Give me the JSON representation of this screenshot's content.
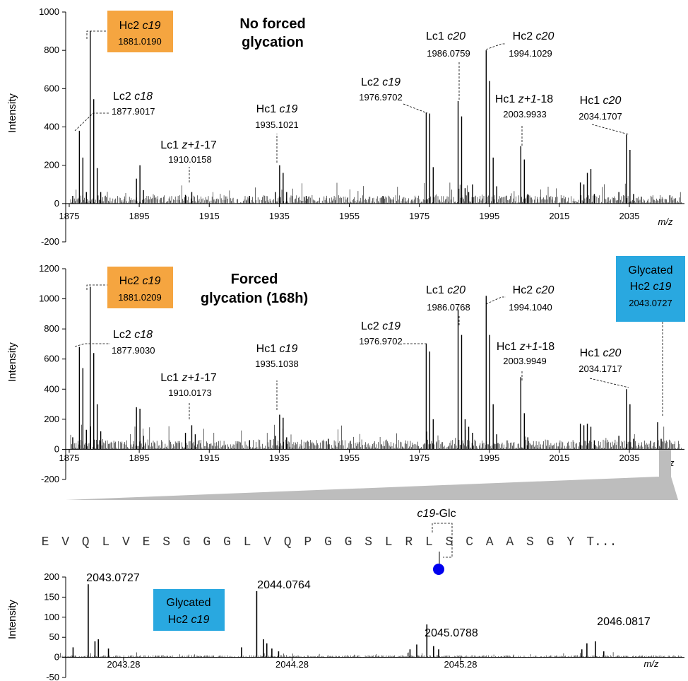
{
  "chart_data": [
    {
      "type": "bar",
      "title": "No forced glycation",
      "title_lines": [
        "No forced",
        "glycation"
      ],
      "ylabel": "Intensity",
      "xlabel": "m/z",
      "xlim": [
        1875,
        2045
      ],
      "ylim": [
        -200,
        1000
      ],
      "yticks": [
        -200,
        0,
        200,
        400,
        600,
        800,
        1000
      ],
      "xticks": [
        1875,
        1895,
        1915,
        1935,
        1955,
        1975,
        1995,
        2015,
        2035
      ],
      "peaks": [
        {
          "mz": 1876.0,
          "i": 40
        },
        {
          "mz": 1877.9,
          "i": 380
        },
        {
          "mz": 1878.9,
          "i": 240
        },
        {
          "mz": 1879.9,
          "i": 60
        },
        {
          "mz": 1881.0,
          "i": 900
        },
        {
          "mz": 1882.0,
          "i": 545
        },
        {
          "mz": 1883.0,
          "i": 185
        },
        {
          "mz": 1884.0,
          "i": 60
        },
        {
          "mz": 1894.2,
          "i": 130
        },
        {
          "mz": 1895.2,
          "i": 200
        },
        {
          "mz": 1896.2,
          "i": 70
        },
        {
          "mz": 1908.2,
          "i": 45
        },
        {
          "mz": 1910.0,
          "i": 60
        },
        {
          "mz": 1926.5,
          "i": 40
        },
        {
          "mz": 1933.9,
          "i": 60
        },
        {
          "mz": 1935.1,
          "i": 200
        },
        {
          "mz": 1936.1,
          "i": 160
        },
        {
          "mz": 1937.1,
          "i": 60
        },
        {
          "mz": 1942.7,
          "i": 40
        },
        {
          "mz": 1964.6,
          "i": 40
        },
        {
          "mz": 1976.97,
          "i": 475
        },
        {
          "mz": 1977.97,
          "i": 470
        },
        {
          "mz": 1978.97,
          "i": 190
        },
        {
          "mz": 1986.08,
          "i": 535
        },
        {
          "mz": 1987.08,
          "i": 455
        },
        {
          "mz": 1988.08,
          "i": 80
        },
        {
          "mz": 1989.1,
          "i": 60
        },
        {
          "mz": 1990.2,
          "i": 100
        },
        {
          "mz": 1994.1,
          "i": 800
        },
        {
          "mz": 1995.1,
          "i": 640
        },
        {
          "mz": 1996.1,
          "i": 240
        },
        {
          "mz": 1997.1,
          "i": 90
        },
        {
          "mz": 2003.99,
          "i": 300
        },
        {
          "mz": 2005.0,
          "i": 230
        },
        {
          "mz": 2006.0,
          "i": 50
        },
        {
          "mz": 2021.0,
          "i": 110
        },
        {
          "mz": 2022.0,
          "i": 100
        },
        {
          "mz": 2023.0,
          "i": 160
        },
        {
          "mz": 2024.0,
          "i": 180
        },
        {
          "mz": 2025.0,
          "i": 50
        },
        {
          "mz": 2032.0,
          "i": 60
        },
        {
          "mz": 2034.17,
          "i": 360
        },
        {
          "mz": 2035.17,
          "i": 280
        },
        {
          "mz": 2036.2,
          "i": 50
        }
      ],
      "labels": [
        {
          "name": "Hc2 ",
          "ion": "c19",
          "suffix": "",
          "mz": "1881.0190",
          "boxed": true,
          "color": "#F5A540"
        },
        {
          "name": "Lc2 ",
          "ion": "c18",
          "suffix": "",
          "mz": "1877.9017"
        },
        {
          "name": "Lc1 ",
          "ion": "z+1",
          "suffix": "-17",
          "mz": "1910.0158"
        },
        {
          "name": "Hc1 ",
          "ion": "c19",
          "suffix": "",
          "mz": "1935.1021"
        },
        {
          "name": "Lc2 ",
          "ion": "c19",
          "suffix": "",
          "mz": "1976.9702"
        },
        {
          "name": "Lc1 ",
          "ion": "c20",
          "suffix": "",
          "mz": "1986.0759"
        },
        {
          "name": "Hc2 ",
          "ion": "c20",
          "suffix": "",
          "mz": "1994.1029"
        },
        {
          "name": "Hc1 ",
          "ion": "z+1",
          "suffix": "-18",
          "mz": "2003.9933"
        },
        {
          "name": "Hc1 ",
          "ion": "c20",
          "suffix": "",
          "mz": "2034.1707"
        }
      ]
    },
    {
      "type": "bar",
      "title": "Forced glycation (168h)",
      "title_lines": [
        "Forced",
        "glycation (168h)"
      ],
      "ylabel": "Intensity",
      "xlabel": "m/z",
      "xlim": [
        1875,
        2045
      ],
      "ylim": [
        -200,
        1200
      ],
      "yticks": [
        -200,
        0,
        200,
        400,
        600,
        800,
        1000,
        1200
      ],
      "xticks": [
        1875,
        1895,
        1915,
        1935,
        1955,
        1975,
        1995,
        2015,
        2035
      ],
      "peaks": [
        {
          "mz": 1876.0,
          "i": 80
        },
        {
          "mz": 1877.9,
          "i": 680
        },
        {
          "mz": 1878.9,
          "i": 540
        },
        {
          "mz": 1879.9,
          "i": 130
        },
        {
          "mz": 1881.0,
          "i": 1080
        },
        {
          "mz": 1882.0,
          "i": 640
        },
        {
          "mz": 1883.0,
          "i": 300
        },
        {
          "mz": 1884.0,
          "i": 120
        },
        {
          "mz": 1894.2,
          "i": 280
        },
        {
          "mz": 1895.2,
          "i": 270
        },
        {
          "mz": 1896.2,
          "i": 90
        },
        {
          "mz": 1908.2,
          "i": 110
        },
        {
          "mz": 1910.0,
          "i": 160
        },
        {
          "mz": 1911.0,
          "i": 100
        },
        {
          "mz": 1926.5,
          "i": 60
        },
        {
          "mz": 1933.9,
          "i": 90
        },
        {
          "mz": 1935.1,
          "i": 230
        },
        {
          "mz": 1936.1,
          "i": 210
        },
        {
          "mz": 1937.1,
          "i": 80
        },
        {
          "mz": 1949.0,
          "i": 70
        },
        {
          "mz": 1976.97,
          "i": 700
        },
        {
          "mz": 1977.97,
          "i": 650
        },
        {
          "mz": 1978.97,
          "i": 200
        },
        {
          "mz": 1986.08,
          "i": 930
        },
        {
          "mz": 1987.08,
          "i": 760
        },
        {
          "mz": 1988.08,
          "i": 200
        },
        {
          "mz": 1989.1,
          "i": 150
        },
        {
          "mz": 1990.2,
          "i": 110
        },
        {
          "mz": 1994.1,
          "i": 1020
        },
        {
          "mz": 1995.1,
          "i": 760
        },
        {
          "mz": 1996.1,
          "i": 300
        },
        {
          "mz": 1997.1,
          "i": 100
        },
        {
          "mz": 2003.99,
          "i": 480
        },
        {
          "mz": 2005.0,
          "i": 240
        },
        {
          "mz": 2006.0,
          "i": 80
        },
        {
          "mz": 2021.0,
          "i": 170
        },
        {
          "mz": 2022.0,
          "i": 160
        },
        {
          "mz": 2023.0,
          "i": 170
        },
        {
          "mz": 2024.0,
          "i": 150
        },
        {
          "mz": 2025.0,
          "i": 60
        },
        {
          "mz": 2032.0,
          "i": 90
        },
        {
          "mz": 2034.17,
          "i": 400
        },
        {
          "mz": 2035.17,
          "i": 300
        },
        {
          "mz": 2036.2,
          "i": 70
        },
        {
          "mz": 2043.07,
          "i": 180
        },
        {
          "mz": 2044.08,
          "i": 70
        }
      ],
      "labels": [
        {
          "name": "Hc2 ",
          "ion": "c19",
          "suffix": "",
          "mz": "1881.0209",
          "boxed": true,
          "color": "#F5A540"
        },
        {
          "name": "Lc2 ",
          "ion": "c18",
          "suffix": "",
          "mz": "1877.9030"
        },
        {
          "name": "Lc1 ",
          "ion": "z+1",
          "suffix": "-17",
          "mz": "1910.0173"
        },
        {
          "name": "Hc1 ",
          "ion": "c19",
          "suffix": "",
          "mz": "1935.1038"
        },
        {
          "name": "Lc2 ",
          "ion": "c19",
          "suffix": "",
          "mz": "1976.9702"
        },
        {
          "name": "Lc1 ",
          "ion": "c20",
          "suffix": "",
          "mz": "1986.0768"
        },
        {
          "name": "Hc2 ",
          "ion": "c20",
          "suffix": "",
          "mz": "1994.1040"
        },
        {
          "name": "Hc1 ",
          "ion": "z+1",
          "suffix": "-18",
          "mz": "2003.9949"
        },
        {
          "name": "Hc1 ",
          "ion": "c20",
          "suffix": "",
          "mz": "2034.1717"
        },
        {
          "name": "Glycated",
          "name2": "Hc2 ",
          "ion": "c19",
          "suffix": "",
          "mz": "2043.0727",
          "boxed": true,
          "color": "#29A8E0"
        }
      ]
    },
    {
      "type": "bar",
      "title": "",
      "ylabel": "Intensity",
      "xlabel": "m/z",
      "xlim": [
        2042.88,
        2046.38
      ],
      "ylim": [
        -50,
        200
      ],
      "yticks": [
        -50,
        0,
        50,
        100,
        150,
        200
      ],
      "xticks": [
        2043.28,
        2044.28,
        2045.28
      ],
      "peaks": [
        {
          "mz": 2042.98,
          "i": 25
        },
        {
          "mz": 2043.07,
          "i": 182
        },
        {
          "mz": 2043.11,
          "i": 40
        },
        {
          "mz": 2043.13,
          "i": 45
        },
        {
          "mz": 2043.19,
          "i": 22
        },
        {
          "mz": 2043.98,
          "i": 25
        },
        {
          "mz": 2044.07,
          "i": 165
        },
        {
          "mz": 2044.11,
          "i": 45
        },
        {
          "mz": 2044.13,
          "i": 35
        },
        {
          "mz": 2044.16,
          "i": 22
        },
        {
          "mz": 2044.2,
          "i": 15
        },
        {
          "mz": 2044.98,
          "i": 20
        },
        {
          "mz": 2045.02,
          "i": 32
        },
        {
          "mz": 2045.08,
          "i": 82
        },
        {
          "mz": 2045.12,
          "i": 28
        },
        {
          "mz": 2045.15,
          "i": 20
        },
        {
          "mz": 2046.0,
          "i": 20
        },
        {
          "mz": 2046.03,
          "i": 35
        },
        {
          "mz": 2046.08,
          "i": 40
        },
        {
          "mz": 2046.13,
          "i": 15
        }
      ],
      "peak_labels": [
        "2043.0727",
        "2044.0764",
        "2045.0788",
        "2046.0817"
      ],
      "box": {
        "line1": "Glycated",
        "line2": "Hc2 ",
        "ion": "c19",
        "color": "#29A8E0"
      }
    }
  ],
  "sequence": {
    "residues": [
      "E",
      "V",
      "Q",
      "L",
      "V",
      "E",
      "S",
      "G",
      "G",
      "G",
      "L",
      "V",
      "Q",
      "P",
      "G",
      "G",
      "S",
      "L",
      "R",
      "L",
      "S",
      "C",
      "A",
      "A",
      "S",
      "G",
      "Y",
      "T..."
    ],
    "cleavage_label_ion": "c19",
    "cleavage_label_suffix": "-Glc",
    "glycation_dot_color": "#0000EE"
  }
}
